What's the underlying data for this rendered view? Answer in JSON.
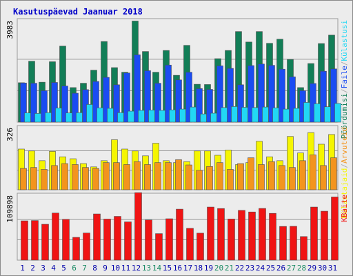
{
  "title": "Kasutuspäevad Jaanuar 2018",
  "colors": {
    "visits": "#127e57",
    "pages": "#1a4cf2",
    "hits": "#22d8f4",
    "bandwidth": "#f5f500",
    "files": "#f3941e",
    "kbytes": "#f01414",
    "weekend_label": "#1a8a64",
    "weekday_label": "#0000aa"
  },
  "chart_data": [
    {
      "type": "bar",
      "name": "top",
      "ymax_label": "3983",
      "ylim": [
        0,
        3983
      ],
      "categories": [
        "1",
        "2",
        "3",
        "4",
        "5",
        "6",
        "7",
        "8",
        "9",
        "10",
        "11",
        "12",
        "13",
        "14",
        "15",
        "16",
        "17",
        "18",
        "19",
        "20",
        "21",
        "22",
        "23",
        "24",
        "25",
        "26",
        "27",
        "28",
        "29",
        "30",
        "31"
      ],
      "legend": [
        {
          "text": "Pöördumisi",
          "color": "#127e57"
        },
        {
          "text": "/",
          "color": "#aaaaaa"
        },
        {
          "text": "Faile",
          "color": "#1a4cf2"
        },
        {
          "text": "/",
          "color": "#aaaaaa"
        },
        {
          "text": "Külastusi",
          "color": "#22d8f4"
        }
      ],
      "series": [
        {
          "name": "Pöördumisi",
          "values": [
            1540,
            2380,
            1560,
            2360,
            2970,
            1350,
            1520,
            2030,
            3150,
            2130,
            1950,
            3950,
            2760,
            1950,
            2800,
            1830,
            3000,
            1480,
            1470,
            2480,
            2800,
            3540,
            3130,
            3540,
            3080,
            3240,
            2450,
            1350,
            2290,
            3070,
            3400
          ]
        },
        {
          "name": "Faile",
          "values": [
            1530,
            1520,
            1230,
            1550,
            1410,
            1130,
            1270,
            1590,
            1750,
            1460,
            1920,
            2630,
            2010,
            1520,
            2230,
            1650,
            1950,
            1310,
            1280,
            2200,
            2100,
            1460,
            2210,
            2270,
            2220,
            2070,
            1770,
            1230,
            1510,
            1990,
            2080
          ]
        },
        {
          "name": "Külastusi",
          "values": [
            360,
            340,
            370,
            550,
            360,
            370,
            690,
            560,
            540,
            370,
            430,
            460,
            470,
            460,
            480,
            510,
            590,
            320,
            350,
            570,
            610,
            580,
            570,
            590,
            560,
            510,
            540,
            770,
            720,
            600,
            730
          ]
        }
      ]
    },
    {
      "type": "bar",
      "name": "middle",
      "ymax_label": "326",
      "ylim": [
        0,
        326
      ],
      "legend": [
        {
          "text": "Külastajaid",
          "color": "#f5f500"
        },
        {
          "text": "/",
          "color": "#aaaaaa"
        },
        {
          "text": "Arvuteid",
          "color": "#f3941e"
        }
      ],
      "series": [
        {
          "name": "Külastajaid",
          "values": [
            210,
            200,
            150,
            198,
            170,
            160,
            135,
            118,
            150,
            258,
            210,
            200,
            175,
            240,
            150,
            140,
            145,
            200,
            200,
            178,
            205,
            130,
            140,
            250,
            170,
            150,
            275,
            190,
            295,
            235,
            285
          ]
        },
        {
          "name": "Arvuteid",
          "values": [
            110,
            115,
            105,
            125,
            135,
            130,
            115,
            110,
            140,
            140,
            130,
            145,
            130,
            140,
            140,
            155,
            128,
            100,
            120,
            140,
            105,
            135,
            165,
            130,
            145,
            125,
            115,
            150,
            180,
            125,
            165
          ]
        }
      ]
    },
    {
      "type": "bar",
      "name": "bottom",
      "ymax_label": "109898",
      "ylim": [
        0,
        109898
      ],
      "legend": [
        {
          "text": "KBaite",
          "color": "#f01414"
        }
      ],
      "series": [
        {
          "name": "KBaite",
          "values": [
            65500,
            66000,
            59800,
            78500,
            68000,
            38000,
            45200,
            77000,
            68500,
            73000,
            63800,
            112500,
            67000,
            44200,
            69000,
            85000,
            53000,
            45000,
            88500,
            86000,
            68600,
            83000,
            80300,
            86200,
            78000,
            56200,
            56400,
            39300,
            88500,
            81600,
            105300
          ]
        }
      ]
    }
  ],
  "weekends": [
    "6",
    "7",
    "13",
    "14",
    "20",
    "21",
    "27",
    "28"
  ]
}
